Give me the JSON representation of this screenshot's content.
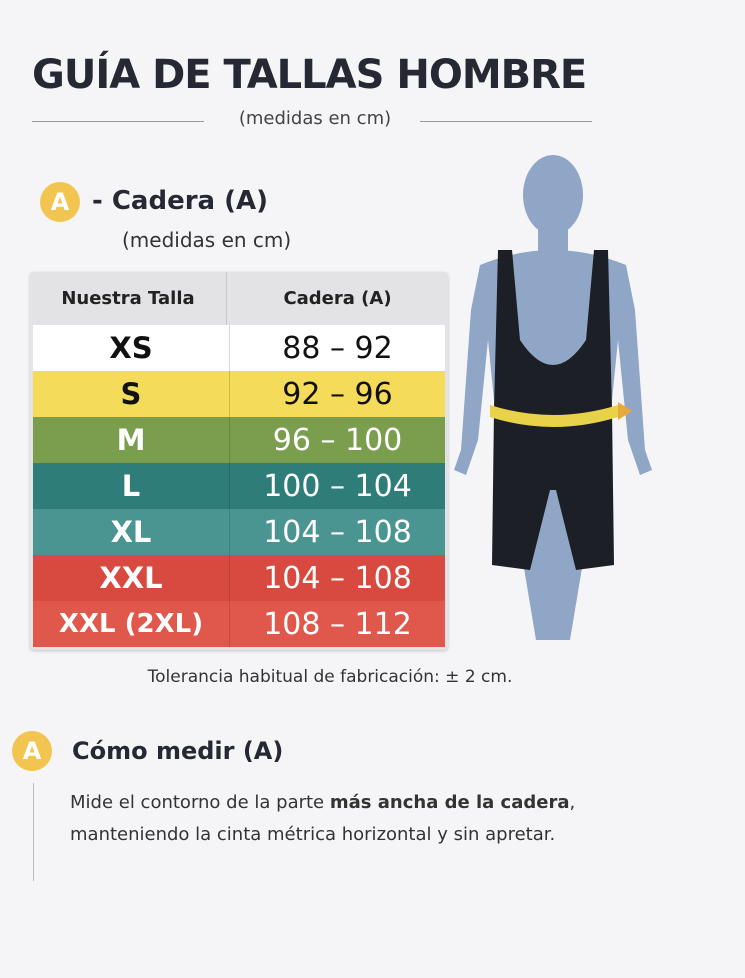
{
  "header": {
    "title": "GUÍA DE TALLAS HOMBRE",
    "subtitle": "(medidas en cm)"
  },
  "section_a": {
    "badge": "A",
    "title": "- Cadera (A)",
    "subtitle": "(medidas en cm)"
  },
  "table": {
    "headers": [
      "Nuestra Talla",
      "Cadera (A)"
    ],
    "rows": [
      {
        "size": "XS",
        "range": "88 – 92",
        "bg": "#ffffff",
        "fg": "#111111"
      },
      {
        "size": "S",
        "range": "92 – 96",
        "bg": "#f4dc5a",
        "fg": "#111111"
      },
      {
        "size": "M",
        "range": "96 – 100",
        "bg": "#7a9e4e",
        "fg": "#ffffff"
      },
      {
        "size": "L",
        "range": "100 – 104",
        "bg": "#2f7d78",
        "fg": "#ffffff"
      },
      {
        "size": "XL",
        "range": "104 – 108",
        "bg": "#4a9592",
        "fg": "#ffffff"
      },
      {
        "size": "XXL",
        "range": "104 – 108",
        "bg": "#d84a40",
        "fg": "#ffffff"
      },
      {
        "size": "XXL (2XL)",
        "range": "108 – 112",
        "bg": "#e0584c",
        "fg": "#ffffff"
      }
    ]
  },
  "tolerance": "Tolerancia habitual de fabricación: ± 2 cm.",
  "how_to": {
    "badge": "A",
    "title": "Cómo medir (A)",
    "text_before": "Mide el contorno de la parte ",
    "text_bold": "más ancha de la cadera",
    "text_after": ",\nmanteniendo la cinta métrica horizontal y sin apretar."
  },
  "colors": {
    "badge": "#f1c550",
    "mannequin": "#8fa6c6",
    "shorts": "#1c1f26",
    "tape": "#e8d24a"
  }
}
